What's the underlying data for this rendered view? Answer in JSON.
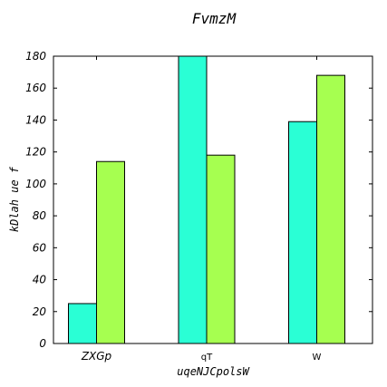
{
  "chart_data": {
    "type": "bar",
    "title": "FvmzM",
    "xlabel": "uqeNJCpolsW",
    "ylabel": "kDlah ue f",
    "categories": [
      "ZXGp",
      "qT",
      "W"
    ],
    "series": [
      {
        "values": [
          25,
          180,
          139
        ],
        "color": "#2affd5"
      },
      {
        "values": [
          114,
          118,
          168
        ],
        "color": "#a6ff50"
      }
    ],
    "ylim": [
      0,
      180
    ],
    "yticks": [
      0,
      20,
      40,
      60,
      80,
      100,
      120,
      140,
      160,
      180
    ],
    "grid": false
  }
}
